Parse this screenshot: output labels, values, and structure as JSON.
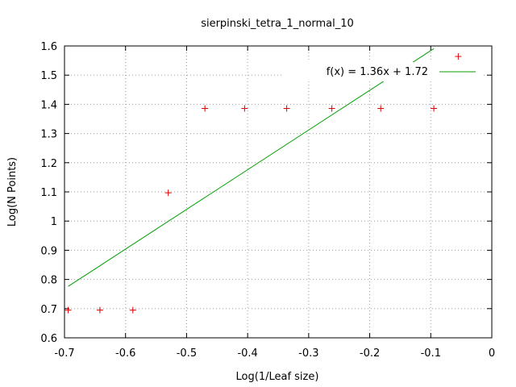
{
  "chart_data": {
    "type": "scatter",
    "title": "sierpinski_tetra_1_normal_10",
    "xlabel": "Log(1/Leaf size)",
    "ylabel": "Log(N Points)",
    "xlim": [
      -0.7,
      0
    ],
    "ylim": [
      0.6,
      1.6
    ],
    "x_ticks": [
      -0.7,
      -0.6,
      -0.5,
      -0.4,
      -0.3,
      -0.2,
      -0.1,
      0
    ],
    "x_tick_labels": [
      "-0.7",
      "-0.6",
      "-0.5",
      "-0.4",
      "-0.3",
      "-0.2",
      "-0.1",
      "0"
    ],
    "y_ticks": [
      0.6,
      0.7,
      0.8,
      0.9,
      1.0,
      1.1,
      1.2,
      1.3,
      1.4,
      1.5,
      1.6
    ],
    "y_tick_labels": [
      "0.6",
      "0.7",
      "0.8",
      "0.9",
      "1",
      "1.1",
      "1.2",
      "1.3",
      "1.4",
      "1.5",
      "1.6"
    ],
    "grid": true,
    "legend_position": "top-right",
    "series": [
      {
        "type": "scatter",
        "name": "",
        "color": "#dd0000",
        "marker": "plus",
        "x": [
          -0.694,
          -0.642,
          -0.588,
          -0.53,
          -0.47,
          -0.405,
          -0.336,
          -0.262,
          -0.182,
          -0.095,
          -0.055
        ],
        "y": [
          0.695,
          0.695,
          0.695,
          1.097,
          1.386,
          1.386,
          1.386,
          1.386,
          1.386,
          1.386,
          1.564
        ]
      },
      {
        "type": "line",
        "name": "f(x) = 1.36x + 1.72",
        "color": "#00a000",
        "slope": 1.36,
        "intercept": 1.72,
        "x_range": [
          -0.694,
          -0.095
        ]
      }
    ]
  }
}
